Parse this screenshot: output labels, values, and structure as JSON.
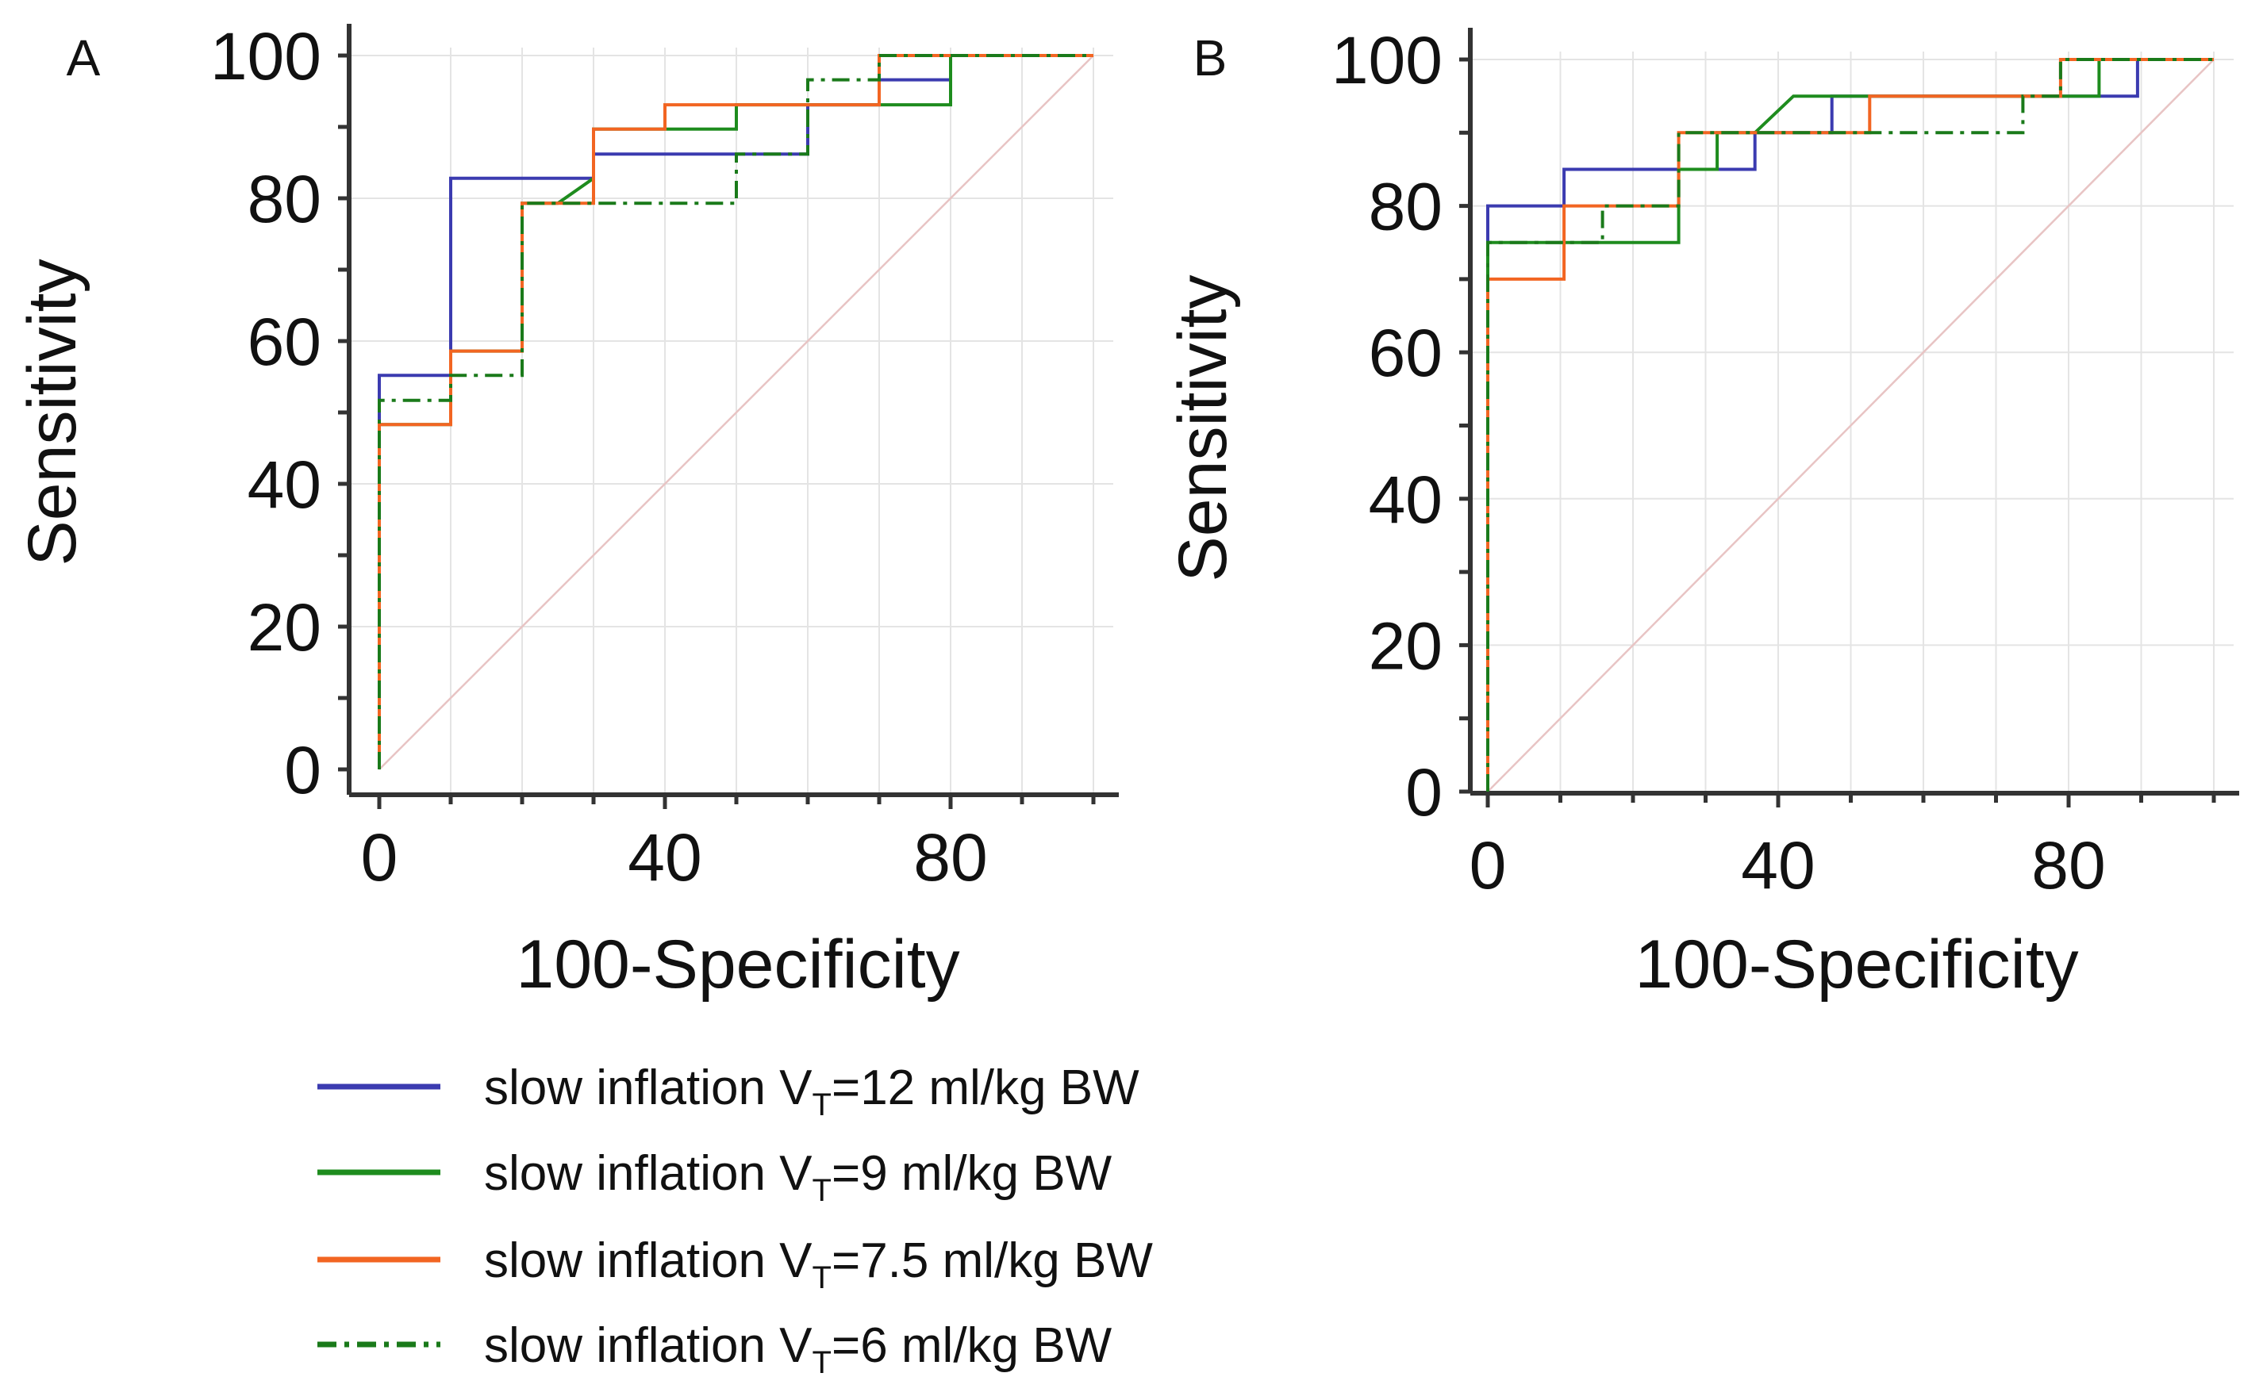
{
  "chart_data": [
    {
      "panel": "A",
      "type": "line",
      "xlabel": "100-Specificity",
      "ylabel": "Sensitivity",
      "xlim": [
        0,
        100
      ],
      "ylim": [
        0,
        100
      ],
      "xticks": [
        0,
        40,
        80
      ],
      "yticks": [
        0,
        20,
        40,
        60,
        80,
        100
      ],
      "diagonal": true,
      "series": [
        {
          "name": "slow inflation VT=12 ml/kg BW",
          "x": [
            0,
            0,
            10,
            10,
            30,
            30,
            60,
            60,
            70,
            70,
            80,
            80,
            100
          ],
          "y": [
            0,
            55.2,
            55.2,
            82.8,
            82.8,
            86.2,
            86.2,
            93.1,
            93.1,
            96.6,
            96.6,
            100,
            100
          ]
        },
        {
          "name": "slow inflation VT=9 ml/kg BW",
          "x": [
            0,
            0,
            10,
            10,
            20,
            20,
            25,
            30,
            30,
            40,
            40,
            50,
            50,
            70,
            80,
            80,
            100
          ],
          "y": [
            0,
            48.3,
            48.3,
            58.6,
            58.6,
            79.3,
            79.3,
            82.8,
            89.7,
            89.7,
            89.7,
            89.7,
            93.1,
            93.1,
            93.1,
            100,
            100
          ]
        },
        {
          "name": "slow inflation VT=7.5 ml/kg BW",
          "x": [
            0,
            0,
            10,
            10,
            20,
            20,
            30,
            30,
            40,
            40,
            70,
            70,
            100
          ],
          "y": [
            0,
            48.3,
            48.3,
            58.6,
            58.6,
            79.3,
            79.3,
            89.7,
            89.7,
            93.1,
            93.1,
            100,
            100
          ]
        },
        {
          "name": "slow inflation VT=6 ml/kg BW",
          "x": [
            0,
            0,
            10,
            10,
            20,
            20,
            50,
            50,
            60,
            60,
            70,
            70,
            100
          ],
          "y": [
            0,
            51.7,
            51.7,
            55.2,
            55.2,
            79.3,
            79.3,
            86.2,
            86.2,
            96.6,
            96.6,
            100,
            100
          ]
        }
      ]
    },
    {
      "panel": "B",
      "type": "line",
      "xlabel": "100-Specificity",
      "ylabel": "Sensitivity",
      "xlim": [
        0,
        100
      ],
      "ylim": [
        0,
        100
      ],
      "xticks": [
        0,
        40,
        80
      ],
      "yticks": [
        0,
        20,
        40,
        60,
        80,
        100
      ],
      "diagonal": true,
      "series": [
        {
          "name": "slow inflation VT=12 ml/kg BW",
          "x": [
            0,
            0,
            10.5,
            10.5,
            26.3,
            26.3,
            36.8,
            36.8,
            47.4,
            47.4,
            78.9,
            78.9,
            89.5,
            89.5,
            100
          ],
          "y": [
            0,
            80,
            80,
            85,
            85,
            85,
            85,
            90,
            90,
            95,
            95,
            95,
            95,
            100,
            100
          ]
        },
        {
          "name": "slow inflation VT=9 ml/kg BW",
          "x": [
            0,
            0,
            10.5,
            10.5,
            26.3,
            26.3,
            31.6,
            31.6,
            36.8,
            42.1,
            78.9,
            78.9,
            84.2,
            84.2,
            100
          ],
          "y": [
            0,
            75,
            75,
            75,
            75,
            85,
            85,
            90,
            90,
            95,
            95,
            95,
            95,
            100,
            100
          ]
        },
        {
          "name": "slow inflation VT=7.5 ml/kg BW",
          "x": [
            0,
            0,
            10.5,
            10.5,
            26.3,
            26.3,
            52.6,
            52.6,
            78.9,
            78.9,
            100
          ],
          "y": [
            0,
            70,
            70,
            80,
            80,
            90,
            90,
            95,
            95,
            100,
            100
          ]
        },
        {
          "name": "slow inflation VT=6 ml/kg BW",
          "x": [
            0,
            0,
            15.8,
            15.8,
            26.3,
            26.3,
            73.7,
            73.7,
            78.9,
            78.9,
            100
          ],
          "y": [
            0,
            75,
            75,
            80,
            80,
            90,
            90,
            95,
            95,
            100,
            100
          ]
        }
      ]
    }
  ],
  "legend": [
    {
      "prefix": "slow inflation V",
      "sub": "T",
      "suffix": "=12 ml/kg BW",
      "color": "#3b3bb0",
      "style": "solid"
    },
    {
      "prefix": "slow inflation V",
      "sub": "T",
      "suffix": "=9 ml/kg BW",
      "color": "#1e8c1e",
      "style": "solid"
    },
    {
      "prefix": "slow inflation V",
      "sub": "T",
      "suffix": "=7.5 ml/kg BW",
      "color": "#f26522",
      "style": "solid"
    },
    {
      "prefix": "slow inflation V",
      "sub": "T",
      "suffix": "=6 ml/kg BW",
      "color": "#1a7a1a",
      "style": "dashdot"
    }
  ],
  "colors": {
    "diagonal": "#e8c4c4",
    "axis": "#333333",
    "grid": "#e4e4e4"
  }
}
